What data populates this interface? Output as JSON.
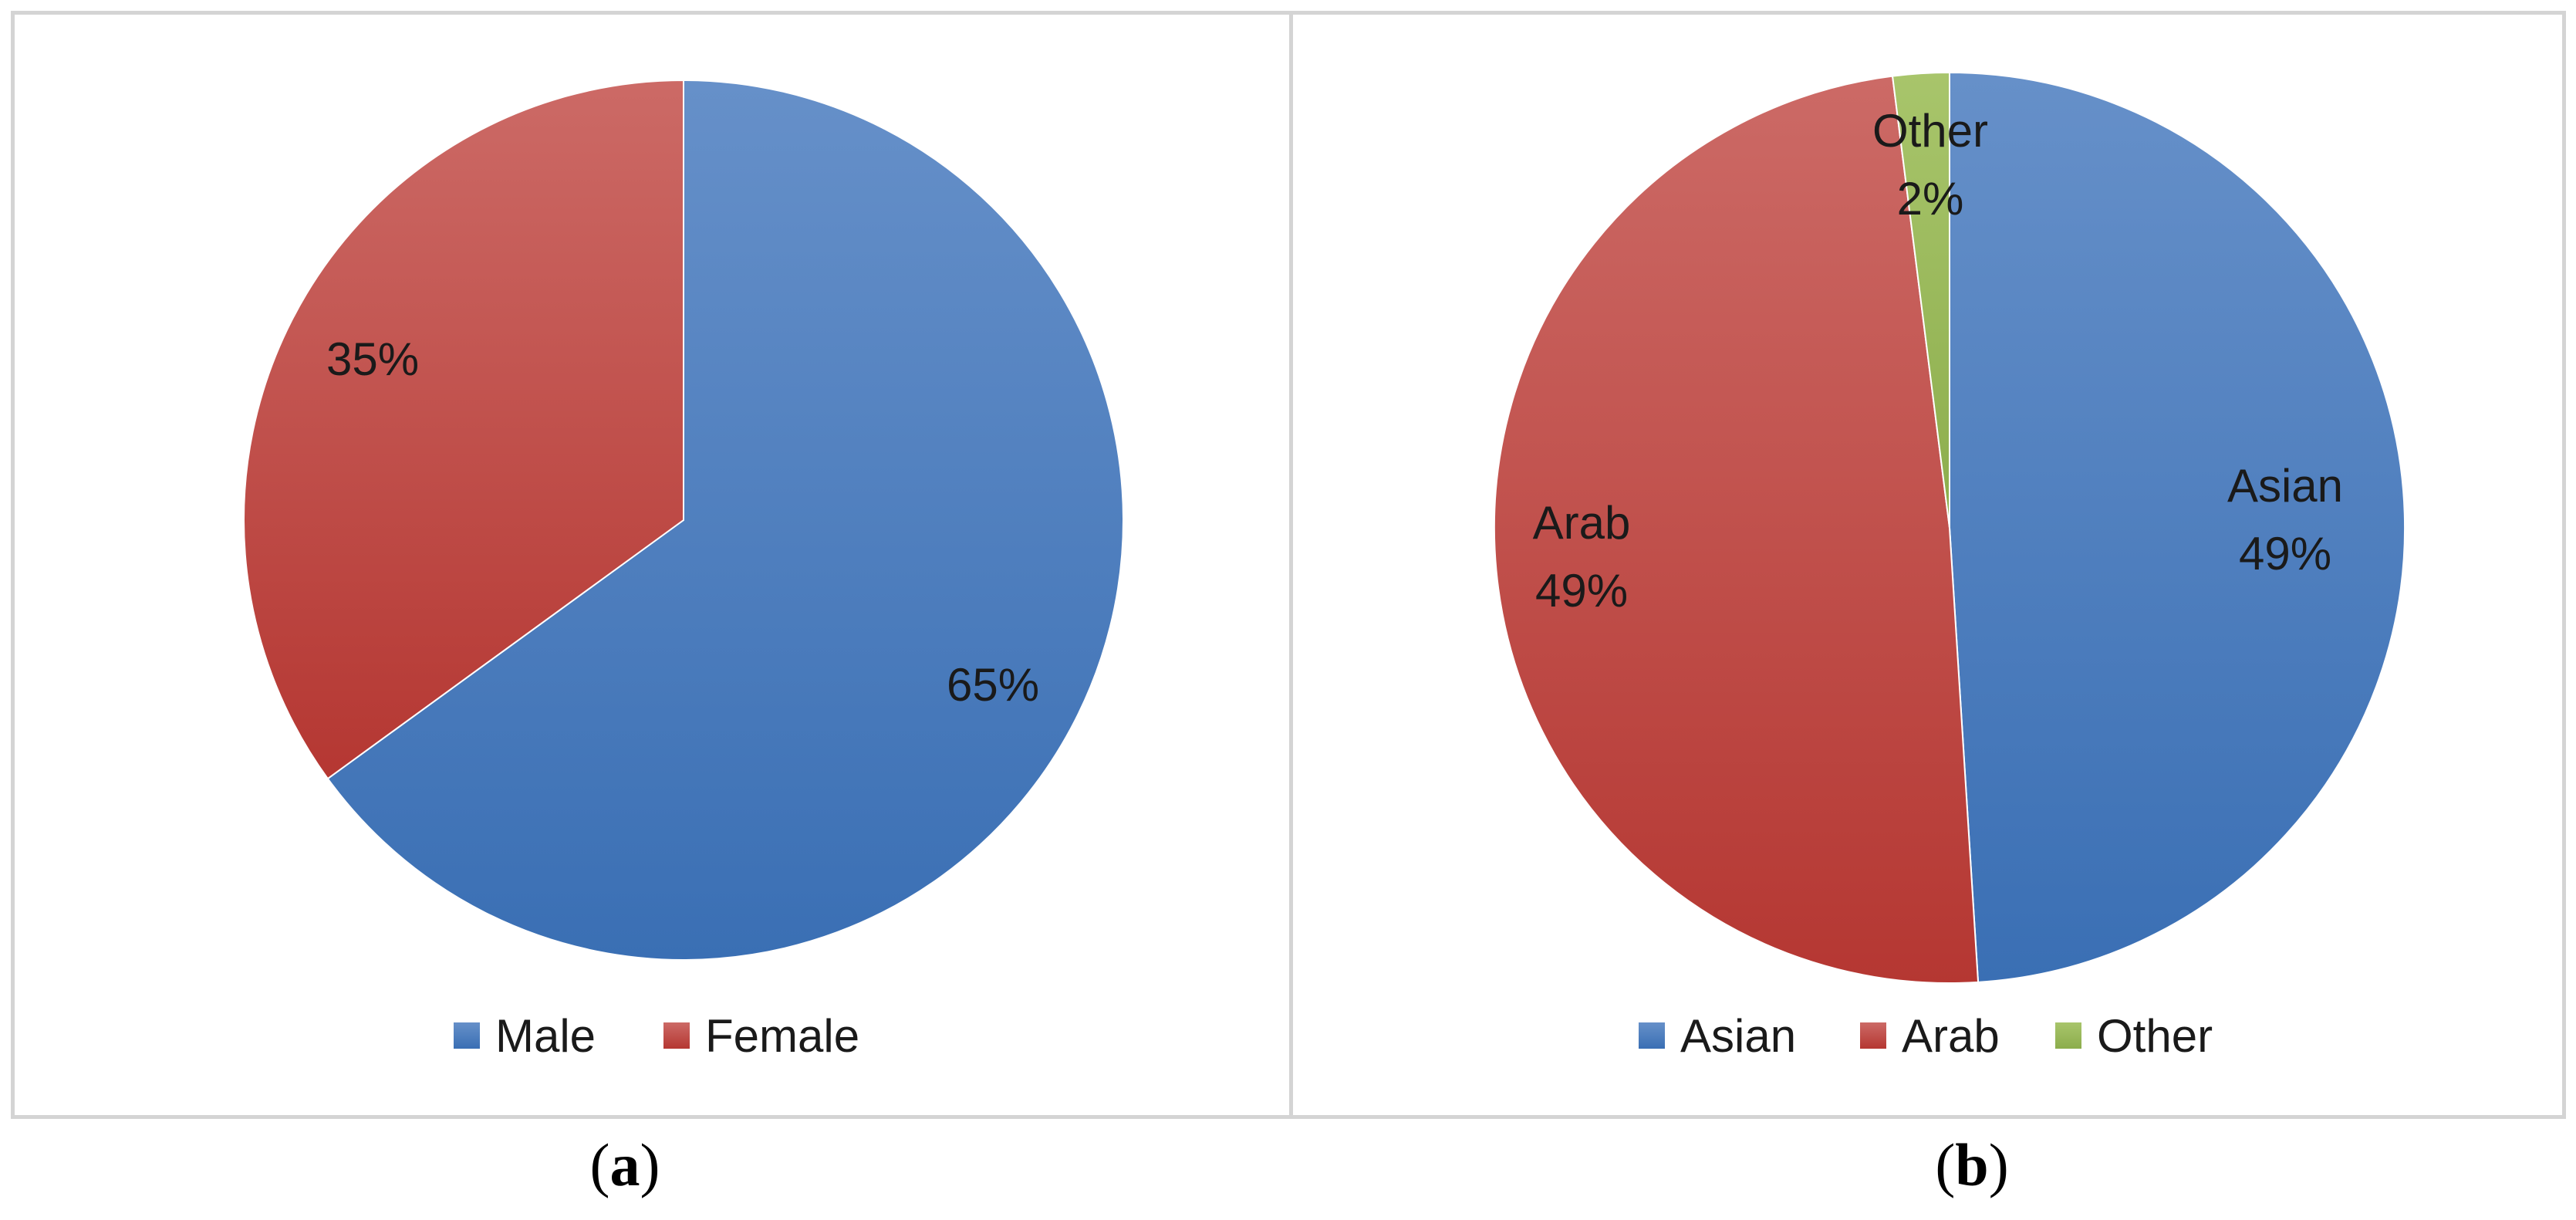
{
  "chart_data": [
    {
      "type": "pie",
      "panel": "a",
      "categories": [
        "Male",
        "Female"
      ],
      "values": [
        65,
        35
      ],
      "value_labels": [
        "65%",
        "35%"
      ],
      "colors": [
        "#4a7ebf",
        "#c0403c"
      ],
      "legend": [
        "Male",
        "Female"
      ],
      "legend_position": "bottom"
    },
    {
      "type": "pie",
      "panel": "b",
      "categories": [
        "Asian",
        "Arab",
        "Other"
      ],
      "values": [
        49,
        49,
        2
      ],
      "slice_labels": [
        [
          "Asian",
          "49%"
        ],
        [
          "Arab",
          "49%"
        ],
        [
          "Other",
          "2%"
        ]
      ],
      "colors": [
        "#4a7ebf",
        "#c0403c",
        "#9bbb59"
      ],
      "legend": [
        "Asian",
        "Arab",
        "Other"
      ],
      "legend_position": "bottom"
    }
  ],
  "captions": {
    "a_open": "(",
    "a_letter": "a",
    "a_close": ")",
    "b_open": "(",
    "b_letter": "b",
    "b_close": ")"
  }
}
